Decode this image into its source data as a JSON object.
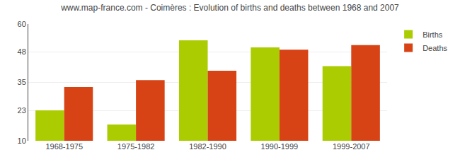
{
  "chart_data": {
    "type": "bar",
    "title": "www.map-france.com - Coimères : Evolution of births and deaths between 1968 and 2007",
    "categories": [
      "1968-1975",
      "1975-1982",
      "1982-1990",
      "1990-1999",
      "1999-2007"
    ],
    "series": [
      {
        "name": "Births",
        "color": "#aacc00",
        "values": [
          23,
          17,
          53,
          50,
          42
        ]
      },
      {
        "name": "Deaths",
        "color": "#d84315",
        "values": [
          33,
          36,
          40,
          49,
          51
        ]
      }
    ],
    "ylim": [
      10,
      60
    ],
    "yticks": [
      10,
      23,
      35,
      48,
      60
    ],
    "grid": true,
    "legend": "upper right"
  }
}
